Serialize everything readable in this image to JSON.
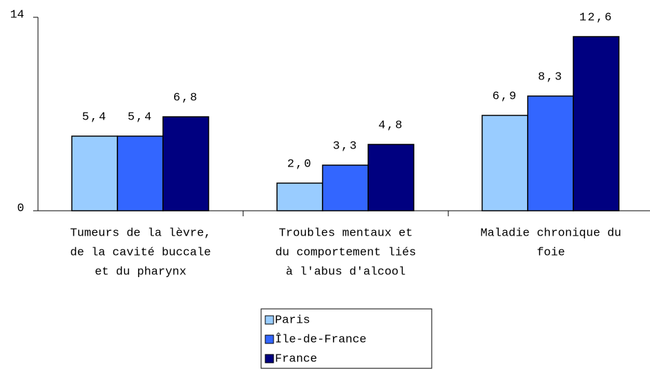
{
  "chart_data": {
    "type": "bar",
    "categories": [
      [
        "Tumeurs de la lèvre,",
        "de la cavité buccale",
        "et du pharynx"
      ],
      [
        "Troubles mentaux et",
        "du comportement liés",
        "à l'abus d'alcool"
      ],
      [
        "Maladie chronique du",
        "foie"
      ]
    ],
    "series": [
      {
        "name": "Paris",
        "color": "#99ccff",
        "values": [
          5.4,
          2.0,
          6.9
        ],
        "value_labels": [
          "5,4",
          "2,0",
          "6,9"
        ]
      },
      {
        "name": "Île-de-France",
        "color": "#3366ff",
        "values": [
          5.4,
          3.3,
          8.3
        ],
        "value_labels": [
          "5,4",
          "3,3",
          "8,3"
        ]
      },
      {
        "name": "France",
        "color": "#000080",
        "values": [
          6.8,
          4.8,
          12.6
        ],
        "value_labels": [
          "6,8",
          "4,8",
          "12,6"
        ]
      }
    ],
    "ylim": [
      0,
      14
    ],
    "yticks": [
      0,
      14
    ],
    "grid": false
  }
}
